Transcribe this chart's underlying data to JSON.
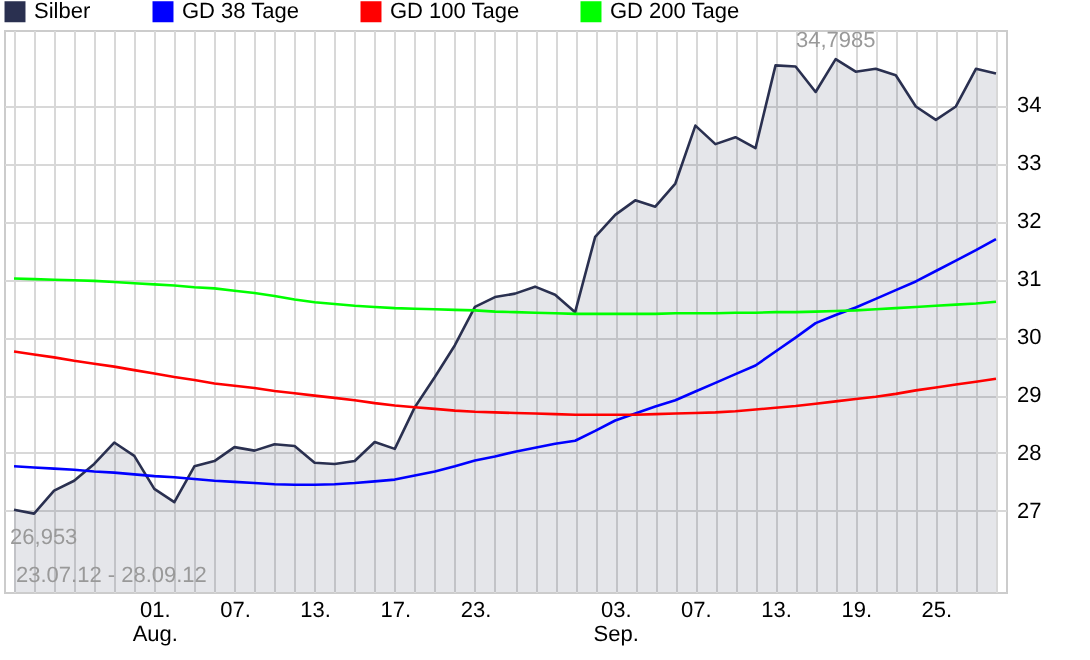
{
  "chart_data": {
    "type": "line",
    "categories": [
      null,
      null,
      null,
      null,
      null,
      null,
      null,
      "01.\nAug.",
      null,
      null,
      null,
      "07.",
      null,
      null,
      null,
      "13.",
      null,
      null,
      null,
      "17.",
      null,
      null,
      null,
      "23.",
      null,
      null,
      null,
      null,
      null,
      null,
      "03.\nSep.",
      null,
      null,
      null,
      "07.",
      null,
      null,
      null,
      "13.",
      null,
      null,
      null,
      "19.",
      null,
      null,
      null,
      "25.",
      null,
      null,
      null
    ],
    "series": [
      {
        "name": "Silber",
        "type": "area",
        "color": "#2a3050",
        "values": [
          27.02,
          26.953,
          27.35,
          27.52,
          27.81,
          28.18,
          27.95,
          27.38,
          27.15,
          27.77,
          27.86,
          28.1,
          28.04,
          28.15,
          28.12,
          27.83,
          27.81,
          27.86,
          28.19,
          28.07,
          28.79,
          29.31,
          29.86,
          30.52,
          30.69,
          30.75,
          30.87,
          30.73,
          30.43,
          31.73,
          32.11,
          32.36,
          32.25,
          32.65,
          33.65,
          33.33,
          33.45,
          33.26,
          34.69,
          34.67,
          34.23,
          34.7985,
          34.58,
          34.63,
          34.52,
          33.98,
          33.75,
          33.98,
          34.63,
          34.55
        ]
      },
      {
        "name": "GD 38 Tage",
        "color": "#0000ff",
        "values": [
          27.77,
          27.75,
          27.73,
          27.71,
          27.68,
          27.66,
          27.63,
          27.6,
          27.58,
          27.55,
          27.52,
          27.5,
          27.48,
          27.46,
          27.45,
          27.45,
          27.46,
          27.48,
          27.51,
          27.54,
          27.61,
          27.68,
          27.77,
          27.87,
          27.94,
          28.02,
          28.09,
          28.16,
          28.21,
          28.38,
          28.56,
          28.68,
          28.8,
          28.91,
          29.06,
          29.21,
          29.36,
          29.51,
          29.75,
          29.99,
          30.24,
          30.38,
          30.51,
          30.66,
          30.81,
          30.96,
          31.14,
          31.32,
          31.5,
          31.69
        ]
      },
      {
        "name": "GD 100 Tage",
        "color": "#ff0000",
        "values": [
          29.75,
          29.7,
          29.65,
          29.59,
          29.54,
          29.49,
          29.43,
          29.37,
          29.31,
          29.26,
          29.2,
          29.16,
          29.12,
          29.07,
          29.03,
          28.99,
          28.95,
          28.91,
          28.86,
          28.82,
          28.79,
          28.76,
          28.73,
          28.71,
          28.7,
          28.69,
          28.68,
          28.67,
          28.66,
          28.66,
          28.66,
          28.66,
          28.67,
          28.68,
          28.69,
          28.7,
          28.72,
          28.75,
          28.78,
          28.81,
          28.85,
          28.89,
          28.93,
          28.97,
          29.02,
          29.08,
          29.13,
          29.18,
          29.23,
          29.28
        ]
      },
      {
        "name": "GD 200 Tage",
        "color": "#00ff00",
        "values": [
          31.01,
          31.0,
          30.99,
          30.98,
          30.97,
          30.95,
          30.93,
          30.91,
          30.89,
          30.86,
          30.84,
          30.8,
          30.76,
          30.71,
          30.65,
          30.6,
          30.57,
          30.54,
          30.52,
          30.5,
          30.49,
          30.48,
          30.47,
          30.46,
          30.44,
          30.43,
          30.42,
          30.41,
          30.4,
          30.4,
          30.4,
          30.4,
          30.4,
          30.41,
          30.41,
          30.41,
          30.42,
          30.42,
          30.43,
          30.43,
          30.44,
          30.45,
          30.46,
          30.48,
          30.5,
          30.52,
          30.54,
          30.56,
          30.58,
          30.61
        ]
      }
    ],
    "ylim": [
      25.6,
      35.3
    ],
    "yticks": [
      27,
      28,
      29,
      30,
      31,
      32,
      33,
      34
    ],
    "grid": true,
    "legend": "top left",
    "annotations": [
      {
        "text": "34,7985",
        "y": 34.7985
      },
      {
        "text": "26,953",
        "y": 26.953
      },
      "23.07.12 - 28.09.12"
    ]
  }
}
